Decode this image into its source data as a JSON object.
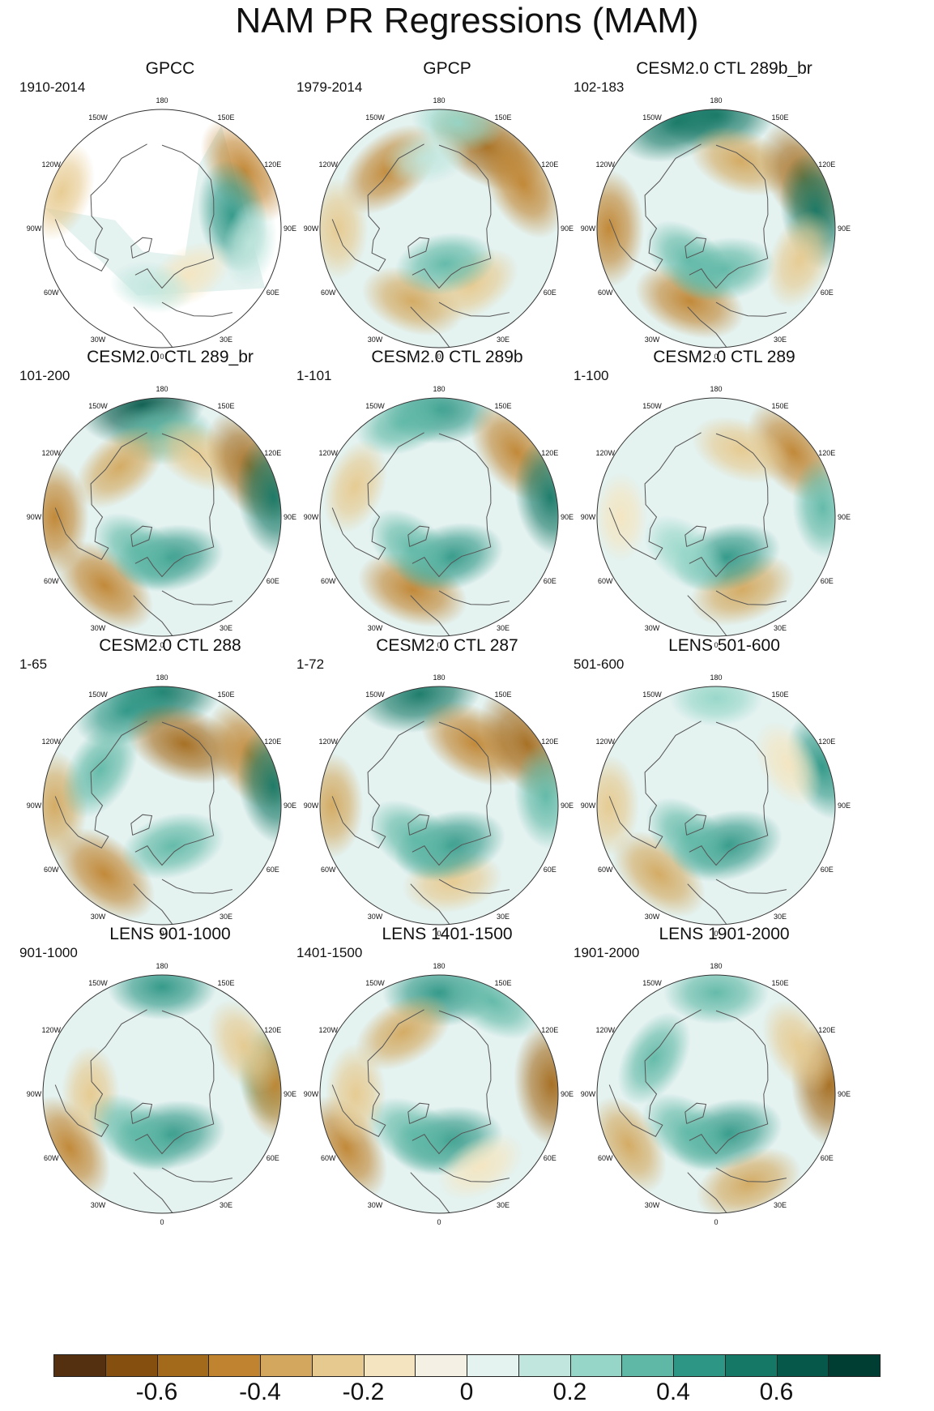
{
  "title": "NAM PR Regressions (MAM)",
  "longitude_labels": [
    "180",
    "150E",
    "120E",
    "90E",
    "60E",
    "30E",
    "0",
    "30W",
    "60W",
    "90W",
    "120W",
    "150W"
  ],
  "panels": [
    {
      "title": "GPCC",
      "period": "1910-2014",
      "masked": true,
      "anomalies": [
        {
          "lon": 125,
          "r": 0.85,
          "v": -0.5
        },
        {
          "lon": 100,
          "r": 0.6,
          "v": 0.45
        },
        {
          "lon": -110,
          "r": 0.9,
          "v": -0.3
        },
        {
          "lon": 30,
          "r": 0.45,
          "v": -0.2
        },
        {
          "lon": -10,
          "r": 0.5,
          "v": 0.1
        },
        {
          "lon": 80,
          "r": 0.75,
          "v": 0.15
        }
      ]
    },
    {
      "title": "GPCP",
      "period": "1979-2014",
      "masked": false,
      "anomalies": [
        {
          "lon": 150,
          "r": 0.8,
          "v": -0.6
        },
        {
          "lon": 118,
          "r": 0.8,
          "v": -0.5
        },
        {
          "lon": -140,
          "r": 0.65,
          "v": -0.45
        },
        {
          "lon": -90,
          "r": 0.85,
          "v": -0.3
        },
        {
          "lon": -20,
          "r": 0.65,
          "v": -0.35
        },
        {
          "lon": 30,
          "r": 0.55,
          "v": -0.3
        },
        {
          "lon": 10,
          "r": 0.3,
          "v": 0.3
        },
        {
          "lon": 170,
          "r": 0.9,
          "v": 0.2
        },
        {
          "lon": -170,
          "r": 0.6,
          "v": 0.15
        }
      ]
    },
    {
      "title": "CESM2.0 CTL 289b_br",
      "period": "102-183",
      "masked": false,
      "anomalies": [
        {
          "lon": 180,
          "r": 0.95,
          "v": 0.5
        },
        {
          "lon": -160,
          "r": 0.95,
          "v": 0.55
        },
        {
          "lon": 160,
          "r": 0.6,
          "v": -0.35
        },
        {
          "lon": 120,
          "r": 0.85,
          "v": -0.55
        },
        {
          "lon": 100,
          "r": 0.85,
          "v": 0.5
        },
        {
          "lon": -90,
          "r": 0.9,
          "v": -0.5
        },
        {
          "lon": -20,
          "r": 0.65,
          "v": -0.45
        },
        {
          "lon": 10,
          "r": 0.35,
          "v": 0.35
        },
        {
          "lon": -40,
          "r": 0.35,
          "v": 0.3
        },
        {
          "lon": 70,
          "r": 0.75,
          "v": -0.3
        }
      ]
    },
    {
      "title": "CESM2.0 CTL 289_br",
      "period": "101-200",
      "masked": false,
      "anomalies": [
        {
          "lon": -170,
          "r": 0.95,
          "v": 0.65
        },
        {
          "lon": 180,
          "r": 0.7,
          "v": 0.35
        },
        {
          "lon": -140,
          "r": 0.55,
          "v": -0.35
        },
        {
          "lon": 150,
          "r": 0.6,
          "v": -0.3
        },
        {
          "lon": 120,
          "r": 0.85,
          "v": -0.55
        },
        {
          "lon": 100,
          "r": 0.95,
          "v": 0.55
        },
        {
          "lon": -90,
          "r": 0.9,
          "v": -0.45
        },
        {
          "lon": -40,
          "r": 0.75,
          "v": -0.45
        },
        {
          "lon": 10,
          "r": 0.35,
          "v": 0.4
        },
        {
          "lon": -35,
          "r": 0.35,
          "v": 0.3
        }
      ]
    },
    {
      "title": "CESM2.0 CTL 289b",
      "period": "1-101",
      "masked": false,
      "anomalies": [
        {
          "lon": 180,
          "r": 0.9,
          "v": 0.45
        },
        {
          "lon": -160,
          "r": 0.85,
          "v": 0.3
        },
        {
          "lon": 130,
          "r": 0.85,
          "v": -0.5
        },
        {
          "lon": 100,
          "r": 0.95,
          "v": 0.5
        },
        {
          "lon": -110,
          "r": 0.75,
          "v": -0.25
        },
        {
          "lon": -20,
          "r": 0.65,
          "v": -0.45
        },
        {
          "lon": 15,
          "r": 0.35,
          "v": 0.4
        },
        {
          "lon": -40,
          "r": 0.35,
          "v": 0.3
        }
      ]
    },
    {
      "title": "CESM2.0 CTL 289",
      "period": "1-100",
      "masked": false,
      "anomalies": [
        {
          "lon": 130,
          "r": 0.85,
          "v": -0.5
        },
        {
          "lon": 160,
          "r": 0.6,
          "v": -0.3
        },
        {
          "lon": 95,
          "r": 0.9,
          "v": 0.3
        },
        {
          "lon": 20,
          "r": 0.65,
          "v": -0.4
        },
        {
          "lon": 15,
          "r": 0.35,
          "v": 0.4
        },
        {
          "lon": -40,
          "r": 0.4,
          "v": 0.25
        },
        {
          "lon": -90,
          "r": 0.8,
          "v": -0.15
        }
      ]
    },
    {
      "title": "CESM2.0 CTL 288",
      "period": "1-65",
      "masked": false,
      "anomalies": [
        {
          "lon": 180,
          "r": 0.95,
          "v": 0.5
        },
        {
          "lon": -160,
          "r": 0.85,
          "v": 0.4
        },
        {
          "lon": 160,
          "r": 0.55,
          "v": -0.55
        },
        {
          "lon": 120,
          "r": 0.85,
          "v": -0.5
        },
        {
          "lon": 100,
          "r": 0.95,
          "v": 0.5
        },
        {
          "lon": -40,
          "r": 0.75,
          "v": -0.5
        },
        {
          "lon": -90,
          "r": 0.9,
          "v": -0.4
        },
        {
          "lon": -120,
          "r": 0.6,
          "v": 0.35
        },
        {
          "lon": 15,
          "r": 0.35,
          "v": 0.35
        }
      ]
    },
    {
      "title": "CESM2.0 CTL 287",
      "period": "1-72",
      "masked": false,
      "anomalies": [
        {
          "lon": -170,
          "r": 0.95,
          "v": 0.6
        },
        {
          "lon": 150,
          "r": 0.6,
          "v": -0.5
        },
        {
          "lon": 125,
          "r": 0.9,
          "v": -0.6
        },
        {
          "lon": 95,
          "r": 0.9,
          "v": 0.35
        },
        {
          "lon": -90,
          "r": 0.9,
          "v": -0.35
        },
        {
          "lon": 10,
          "r": 0.65,
          "v": -0.3
        },
        {
          "lon": 15,
          "r": 0.35,
          "v": 0.45
        },
        {
          "lon": -35,
          "r": 0.35,
          "v": 0.35
        }
      ]
    },
    {
      "title": "LENS 501-600",
      "period": "501-600",
      "masked": false,
      "anomalies": [
        {
          "lon": 110,
          "r": 0.95,
          "v": 0.4
        },
        {
          "lon": 120,
          "r": 0.7,
          "v": -0.2
        },
        {
          "lon": -40,
          "r": 0.75,
          "v": -0.4
        },
        {
          "lon": -90,
          "r": 0.9,
          "v": -0.3
        },
        {
          "lon": 15,
          "r": 0.35,
          "v": 0.45
        },
        {
          "lon": -40,
          "r": 0.35,
          "v": 0.3
        },
        {
          "lon": 180,
          "r": 0.9,
          "v": 0.2
        }
      ]
    },
    {
      "title": "LENS 901-1000",
      "period": "901-1000",
      "masked": false,
      "anomalies": [
        {
          "lon": 180,
          "r": 0.9,
          "v": 0.4
        },
        {
          "lon": 100,
          "r": 0.9,
          "v": 0.3
        },
        {
          "lon": 95,
          "r": 0.95,
          "v": -0.45
        },
        {
          "lon": -60,
          "r": 0.9,
          "v": -0.45
        },
        {
          "lon": -90,
          "r": 0.6,
          "v": -0.25
        },
        {
          "lon": 10,
          "r": 0.35,
          "v": 0.45
        },
        {
          "lon": -35,
          "r": 0.4,
          "v": 0.35
        },
        {
          "lon": 120,
          "r": 0.8,
          "v": -0.3
        }
      ]
    },
    {
      "title": "LENS 1401-1500",
      "period": "1401-1500",
      "masked": false,
      "anomalies": [
        {
          "lon": 180,
          "r": 0.85,
          "v": 0.45
        },
        {
          "lon": 150,
          "r": 0.9,
          "v": 0.35
        },
        {
          "lon": -150,
          "r": 0.6,
          "v": -0.35
        },
        {
          "lon": 95,
          "r": 0.95,
          "v": -0.6
        },
        {
          "lon": -60,
          "r": 0.9,
          "v": -0.45
        },
        {
          "lon": -90,
          "r": 0.7,
          "v": -0.3
        },
        {
          "lon": 10,
          "r": 0.4,
          "v": 0.45
        },
        {
          "lon": -30,
          "r": 0.4,
          "v": 0.35
        },
        {
          "lon": 30,
          "r": 0.7,
          "v": -0.2
        }
      ]
    },
    {
      "title": "LENS 1901-2000",
      "period": "1901-2000",
      "masked": false,
      "anomalies": [
        {
          "lon": 180,
          "r": 0.85,
          "v": 0.35
        },
        {
          "lon": 95,
          "r": 0.95,
          "v": -0.6
        },
        {
          "lon": 120,
          "r": 0.8,
          "v": -0.3
        },
        {
          "lon": -60,
          "r": 0.85,
          "v": -0.35
        },
        {
          "lon": 20,
          "r": 0.8,
          "v": -0.4
        },
        {
          "lon": 15,
          "r": 0.35,
          "v": 0.45
        },
        {
          "lon": -35,
          "r": 0.4,
          "v": 0.35
        },
        {
          "lon": -120,
          "r": 0.6,
          "v": 0.3
        }
      ]
    }
  ],
  "colorbar": {
    "colors": [
      "#553010",
      "#85500f",
      "#a46a1b",
      "#c08430",
      "#d3a85e",
      "#e6c98e",
      "#f4e5c0",
      "#f5f0e4",
      "#e4f2f0",
      "#c0e6dd",
      "#95d6c8",
      "#5fb8a6",
      "#2d9685",
      "#157765",
      "#06594a",
      "#003e33"
    ],
    "labels": [
      "-0.6",
      "-0.4",
      "-0.2",
      "0",
      "0.2",
      "0.4",
      "0.6"
    ],
    "label_values": [
      -0.6,
      -0.4,
      -0.2,
      0,
      0.2,
      0.4,
      0.6
    ],
    "min": -0.8,
    "max": 0.8
  }
}
